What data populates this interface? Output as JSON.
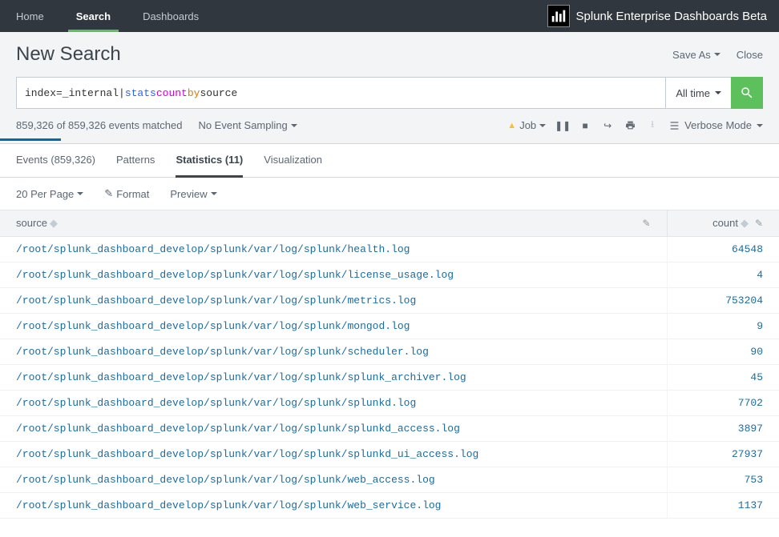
{
  "nav": {
    "items": [
      "Home",
      "Search",
      "Dashboards"
    ],
    "active_index": 1,
    "brand": "Splunk Enterprise Dashboards Beta"
  },
  "header": {
    "title": "New Search",
    "save_as": "Save As",
    "close": "Close"
  },
  "search": {
    "query_parts": {
      "index": "index=_internal| ",
      "stats": "stats",
      "space1": " ",
      "count": "count",
      "space2": " ",
      "by": "by",
      "space3": " ",
      "source": "source"
    },
    "time_label": "All time"
  },
  "status": {
    "events_text": "859,326 of 859,326 events matched",
    "sampling_label": "No Event Sampling",
    "job_label": "Job",
    "mode_label": "Verbose Mode"
  },
  "tabs": [
    {
      "label": "Events (859,326)"
    },
    {
      "label": "Patterns"
    },
    {
      "label": "Statistics (11)"
    },
    {
      "label": "Visualization"
    }
  ],
  "tabs_active_index": 2,
  "table_controls": {
    "per_page": "20 Per Page",
    "format": "Format",
    "preview": "Preview"
  },
  "table": {
    "columns": [
      {
        "name": "source",
        "align": "left"
      },
      {
        "name": "count",
        "align": "right"
      }
    ],
    "rows": [
      {
        "source": "/root/splunk_dashboard_develop/splunk/var/log/splunk/health.log",
        "count": "64548"
      },
      {
        "source": "/root/splunk_dashboard_develop/splunk/var/log/splunk/license_usage.log",
        "count": "4"
      },
      {
        "source": "/root/splunk_dashboard_develop/splunk/var/log/splunk/metrics.log",
        "count": "753204"
      },
      {
        "source": "/root/splunk_dashboard_develop/splunk/var/log/splunk/mongod.log",
        "count": "9"
      },
      {
        "source": "/root/splunk_dashboard_develop/splunk/var/log/splunk/scheduler.log",
        "count": "90"
      },
      {
        "source": "/root/splunk_dashboard_develop/splunk/var/log/splunk/splunk_archiver.log",
        "count": "45"
      },
      {
        "source": "/root/splunk_dashboard_develop/splunk/var/log/splunk/splunkd.log",
        "count": "7702"
      },
      {
        "source": "/root/splunk_dashboard_develop/splunk/var/log/splunk/splunkd_access.log",
        "count": "3897"
      },
      {
        "source": "/root/splunk_dashboard_develop/splunk/var/log/splunk/splunkd_ui_access.log",
        "count": "27937"
      },
      {
        "source": "/root/splunk_dashboard_develop/splunk/var/log/splunk/web_access.log",
        "count": "753"
      },
      {
        "source": "/root/splunk_dashboard_develop/splunk/var/log/splunk/web_service.log",
        "count": "1137"
      }
    ]
  },
  "colors": {
    "nav_bg": "#31373e",
    "accent_green": "#5cc05c",
    "link_blue": "#1e6b9c",
    "progress_blue": "#006caa"
  }
}
